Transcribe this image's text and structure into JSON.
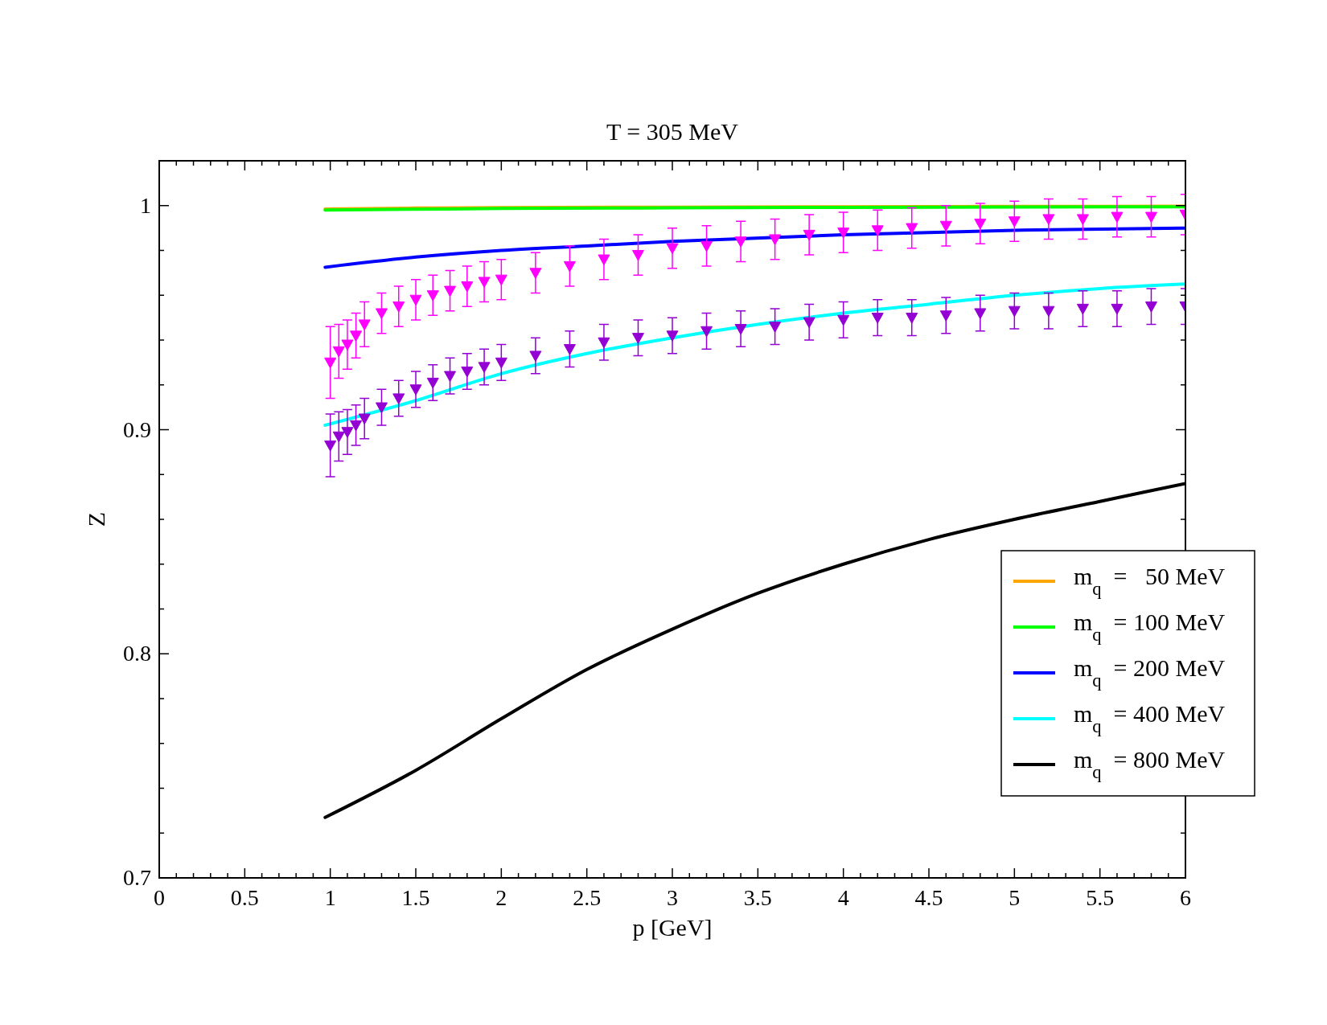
{
  "chart_data": {
    "type": "line",
    "title": "T = 305 MeV",
    "xlabel": "p  [GeV]",
    "ylabel": "Z",
    "xlim": [
      0,
      6
    ],
    "ylim": [
      0.7,
      1.02
    ],
    "xticks": [
      0,
      {
        "value": 0.1,
        "label": null
      },
      {
        "value": 0.2,
        "label": null
      },
      {
        "value": 0.3,
        "label": null
      },
      {
        "value": 0.4,
        "label": null
      },
      0.5,
      {
        "value": 0.6,
        "label": null
      },
      {
        "value": 0.7,
        "label": null
      },
      {
        "value": 0.8,
        "label": null
      },
      {
        "value": 0.9,
        "label": null
      },
      1,
      {
        "value": 1.1,
        "label": null
      },
      {
        "value": 1.2,
        "label": null
      },
      {
        "value": 1.3,
        "label": null
      },
      {
        "value": 1.4,
        "label": null
      },
      1.5,
      {
        "value": 1.6,
        "label": null
      },
      {
        "value": 1.7,
        "label": null
      },
      {
        "value": 1.8,
        "label": null
      },
      {
        "value": 1.9,
        "label": null
      },
      2,
      {
        "value": 2.1,
        "label": null
      },
      {
        "value": 2.2,
        "label": null
      },
      {
        "value": 2.3,
        "label": null
      },
      {
        "value": 2.4,
        "label": null
      },
      2.5,
      {
        "value": 2.6,
        "label": null
      },
      {
        "value": 2.7,
        "label": null
      },
      {
        "value": 2.8,
        "label": null
      },
      {
        "value": 2.9,
        "label": null
      },
      3,
      {
        "value": 3.1,
        "label": null
      },
      {
        "value": 3.2,
        "label": null
      },
      {
        "value": 3.3,
        "label": null
      },
      {
        "value": 3.4,
        "label": null
      },
      3.5,
      {
        "value": 3.6,
        "label": null
      },
      {
        "value": 3.7,
        "label": null
      },
      {
        "value": 3.8,
        "label": null
      },
      {
        "value": 3.9,
        "label": null
      },
      4,
      {
        "value": 4.1,
        "label": null
      },
      {
        "value": 4.2,
        "label": null
      },
      {
        "value": 4.3,
        "label": null
      },
      {
        "value": 4.4,
        "label": null
      },
      4.5,
      {
        "value": 4.6,
        "label": null
      },
      {
        "value": 4.7,
        "label": null
      },
      {
        "value": 4.8,
        "label": null
      },
      {
        "value": 4.9,
        "label": null
      },
      5,
      {
        "value": 5.1,
        "label": null
      },
      {
        "value": 5.2,
        "label": null
      },
      {
        "value": 5.3,
        "label": null
      },
      {
        "value": 5.4,
        "label": null
      },
      5.5,
      {
        "value": 5.6,
        "label": null
      },
      {
        "value": 5.7,
        "label": null
      },
      {
        "value": 5.8,
        "label": null
      },
      {
        "value": 5.9,
        "label": null
      },
      6
    ],
    "yticks": [
      0.7,
      {
        "value": 0.72,
        "label": null
      },
      {
        "value": 0.74,
        "label": null
      },
      {
        "value": 0.76,
        "label": null
      },
      {
        "value": 0.78,
        "label": null
      },
      0.8,
      {
        "value": 0.82,
        "label": null
      },
      {
        "value": 0.84,
        "label": null
      },
      {
        "value": 0.86,
        "label": null
      },
      {
        "value": 0.88,
        "label": null
      },
      0.9,
      {
        "value": 0.92,
        "label": null
      },
      {
        "value": 0.94,
        "label": null
      },
      {
        "value": 0.96,
        "label": null
      },
      {
        "value": 0.98,
        "label": null
      },
      1,
      {
        "value": 1.02,
        "label": null
      }
    ],
    "legend": "right",
    "marker": "none",
    "line_style": "solid",
    "series": [
      {
        "name": "m$_{q}$ =   50 MeV",
        "color": "#ffa500",
        "x": [
          0.97,
          1.5,
          2,
          3,
          4,
          5,
          6
        ],
        "values": [
          0.9985,
          0.9989,
          0.9991,
          0.9993,
          0.9995,
          0.9996,
          0.9997
        ]
      },
      {
        "name": "m$_{q}$ = 100 MeV",
        "color": "#00ff00",
        "x": [
          0.97,
          1.5,
          2,
          3,
          4,
          5,
          6
        ],
        "values": [
          0.998,
          0.9984,
          0.9987,
          0.999,
          0.9992,
          0.9994,
          0.9995
        ]
      },
      {
        "name": "m$_{q}$ = 200 MeV",
        "color": "#0000ff",
        "x": [
          0.97,
          1.5,
          2,
          2.5,
          3,
          4,
          5,
          6
        ],
        "values": [
          0.9725,
          0.977,
          0.98,
          0.982,
          0.984,
          0.987,
          0.989,
          0.99
        ]
      },
      {
        "name": "m$_{q}$ = 400 MeV",
        "color": "#00ffff",
        "x": [
          0.97,
          1.5,
          2,
          2.5,
          3,
          3.5,
          4,
          4.5,
          5,
          5.5,
          6
        ],
        "values": [
          0.902,
          0.913,
          0.925,
          0.934,
          0.941,
          0.947,
          0.952,
          0.956,
          0.96,
          0.963,
          0.965
        ]
      },
      {
        "name": "m$_{q}$ = 800 MeV",
        "color": "#000000",
        "x": [
          0.97,
          1.5,
          2,
          2.5,
          3,
          3.5,
          4,
          4.5,
          5,
          5.5,
          6
        ],
        "values": [
          0.727,
          0.748,
          0.771,
          0.793,
          0.811,
          0.827,
          0.84,
          0.851,
          0.86,
          0.868,
          0.876
        ]
      },
      {
        "type": "scatter",
        "marker": "triangle",
        "color": "#ff00ff",
        "x": [
          1,
          1.05,
          1.1,
          1.15,
          1.2,
          1.3,
          1.4,
          1.5,
          1.6,
          1.7,
          1.8,
          1.9,
          2,
          2.2,
          2.4,
          2.6,
          2.8,
          3,
          3.2,
          3.4,
          3.6,
          3.8,
          4,
          4.2,
          4.4,
          4.6,
          4.8,
          5,
          5.2,
          5.4,
          5.6,
          5.8,
          6
        ],
        "values": [
          0.93,
          0.935,
          0.938,
          0.942,
          0.947,
          0.952,
          0.955,
          0.958,
          0.96,
          0.962,
          0.964,
          0.966,
          0.967,
          0.97,
          0.973,
          0.976,
          0.978,
          0.981,
          0.982,
          0.984,
          0.985,
          0.987,
          0.988,
          0.989,
          0.99,
          0.991,
          0.992,
          0.993,
          0.994,
          0.994,
          0.995,
          0.995,
          0.996
        ],
        "errors": [
          0.016,
          0.012,
          0.011,
          0.01,
          0.01,
          0.009,
          0.009,
          0.009,
          0.009,
          0.009,
          0.009,
          0.009,
          0.009,
          0.009,
          0.009,
          0.009,
          0.009,
          0.009,
          0.009,
          0.009,
          0.009,
          0.009,
          0.009,
          0.009,
          0.009,
          0.009,
          0.009,
          0.009,
          0.009,
          0.009,
          0.009,
          0.009,
          0.009
        ]
      },
      {
        "type": "scatter",
        "marker": "triangle",
        "color": "#9400d3",
        "x": [
          1,
          1.05,
          1.1,
          1.15,
          1.2,
          1.3,
          1.4,
          1.5,
          1.6,
          1.7,
          1.8,
          1.9,
          2,
          2.2,
          2.4,
          2.6,
          2.8,
          3,
          3.2,
          3.4,
          3.6,
          3.8,
          4,
          4.2,
          4.4,
          4.6,
          4.8,
          5,
          5.2,
          5.4,
          5.6,
          5.8,
          6
        ],
        "values": [
          0.893,
          0.897,
          0.899,
          0.902,
          0.905,
          0.91,
          0.914,
          0.918,
          0.921,
          0.924,
          0.926,
          0.928,
          0.93,
          0.933,
          0.936,
          0.939,
          0.941,
          0.942,
          0.944,
          0.945,
          0.946,
          0.948,
          0.949,
          0.95,
          0.95,
          0.951,
          0.952,
          0.953,
          0.953,
          0.954,
          0.954,
          0.955,
          0.955
        ],
        "errors": [
          0.014,
          0.011,
          0.01,
          0.009,
          0.009,
          0.008,
          0.008,
          0.008,
          0.008,
          0.008,
          0.008,
          0.008,
          0.008,
          0.008,
          0.008,
          0.008,
          0.008,
          0.008,
          0.008,
          0.008,
          0.008,
          0.008,
          0.008,
          0.008,
          0.008,
          0.008,
          0.008,
          0.008,
          0.008,
          0.008,
          0.008,
          0.008,
          0.008
        ]
      }
    ]
  }
}
